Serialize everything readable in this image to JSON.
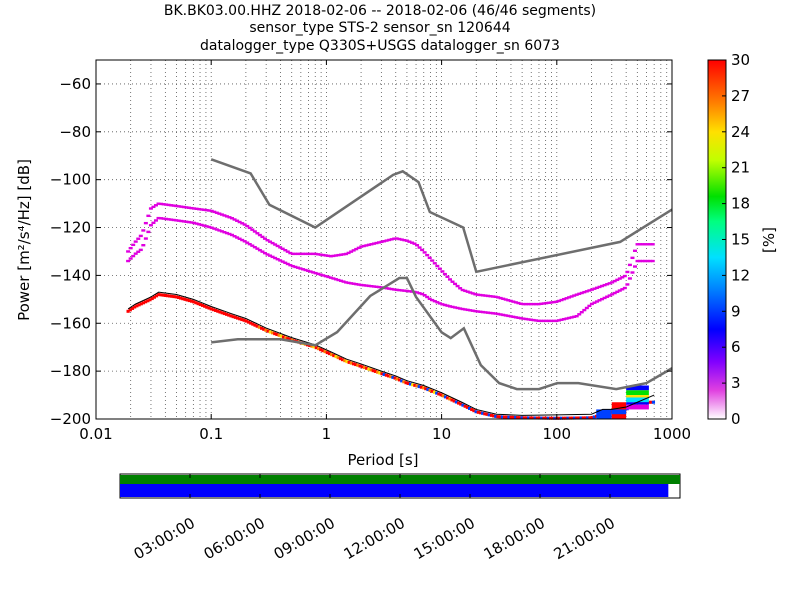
{
  "header": {
    "title_lines": [
      "BK.BK03.00.HHZ   2018-02-06 -- 2018-02-06  (46/46 segments)",
      "sensor_type STS-2 sensor_sn 120644",
      "datalogger_type Q330S+USGS datalogger_sn 6073"
    ]
  },
  "chart_data": [
    {
      "type": "heatmap",
      "xlabel": "Period [s]",
      "ylabel": "Power [m²/s⁴/Hz] [dB]",
      "xscale": "log",
      "xlim": [
        0.01,
        1000
      ],
      "ylim": [
        -200,
        -50
      ],
      "xtick_labels": [
        "0.01",
        "0.1",
        "1",
        "10",
        "100",
        "1000"
      ],
      "xtick_values": [
        0.01,
        0.1,
        1,
        10,
        100,
        1000
      ],
      "ytick_values": [
        -60,
        -80,
        -100,
        -120,
        -140,
        -160,
        -180,
        -200
      ],
      "ytick_labels": [
        "−60",
        "−80",
        "−100",
        "−120",
        "−140",
        "−160",
        "−180",
        "−200"
      ],
      "grid": true,
      "noise_model_high": {
        "x": [
          0.1,
          0.22,
          0.32,
          0.8,
          3.8,
          4.6,
          6.3,
          7.9,
          15.4,
          20,
          354.8,
          1000
        ],
        "y": [
          -91.5,
          -97.4,
          -110.5,
          -120,
          -98,
          -96.5,
          -101,
          -113.5,
          -120,
          -138.5,
          -126,
          -112.5
        ]
      },
      "noise_model_low": {
        "x": [
          0.1,
          0.17,
          0.4,
          0.8,
          1.24,
          2.4,
          4.3,
          5,
          6,
          10,
          12,
          15.6,
          21.9,
          31.6,
          45,
          70,
          101,
          154,
          328,
          600,
          1000
        ],
        "y": [
          -168,
          -166.7,
          -166.7,
          -169.2,
          -163.7,
          -148.6,
          -141.1,
          -141.1,
          -149,
          -163.8,
          -166.2,
          -162.1,
          -177.5,
          -185,
          -187.5,
          -187.5,
          -185,
          -185,
          -187.5,
          -185,
          -178.8
        ]
      },
      "psd_mode_upper": {
        "x": [
          0.019,
          0.022,
          0.025,
          0.03,
          0.035,
          0.05,
          0.07,
          0.1,
          0.15,
          0.2,
          0.3,
          0.5,
          0.8,
          1.1,
          1.5,
          2,
          3,
          4,
          5,
          6,
          7,
          8,
          10,
          12,
          15,
          20,
          30,
          50,
          70,
          100,
          150,
          200,
          300,
          400,
          500,
          700
        ],
        "y": [
          -130,
          -126,
          -123,
          -112,
          -110,
          -111,
          -112,
          -113,
          -116,
          -119,
          -125,
          -131,
          -131,
          -132,
          -131,
          -128,
          -126,
          -124.5,
          -125.5,
          -127,
          -130,
          -133,
          -138,
          -142,
          -146,
          -148,
          -149,
          -152,
          -152,
          -151,
          -148,
          -146,
          -143,
          -140,
          -127,
          -127
        ]
      },
      "psd_mode_lower": {
        "x": [
          0.019,
          0.022,
          0.025,
          0.03,
          0.035,
          0.05,
          0.07,
          0.1,
          0.15,
          0.2,
          0.3,
          0.5,
          0.8,
          1.1,
          1.5,
          2,
          3,
          4,
          5,
          6,
          7,
          8,
          10,
          12,
          15,
          20,
          30,
          50,
          70,
          100,
          150,
          200,
          300,
          400,
          500,
          700
        ],
        "y": [
          -134,
          -131,
          -129,
          -119,
          -116,
          -117,
          -118,
          -120,
          -123,
          -126,
          -131,
          -136,
          -139,
          -141,
          -143,
          -144,
          -145,
          -146,
          -146.5,
          -147,
          -148,
          -150,
          -152,
          -153,
          -154,
          -155,
          -156,
          -158,
          -159,
          -159,
          -157,
          -152,
          -148,
          -145,
          -134,
          -134
        ]
      },
      "psd_floor": {
        "x": [
          0.019,
          0.022,
          0.03,
          0.035,
          0.05,
          0.07,
          0.1,
          0.15,
          0.2,
          0.3,
          0.5,
          0.8,
          1.1,
          1.5,
          2,
          3,
          4,
          5,
          7,
          10,
          15,
          20,
          30,
          50,
          100,
          200,
          300,
          400,
          500,
          700
        ],
        "y": [
          -155,
          -153,
          -150,
          -148,
          -149,
          -151,
          -154,
          -157,
          -159,
          -163,
          -167,
          -170,
          -173,
          -176,
          -178,
          -181,
          -183,
          -185,
          -187,
          -190,
          -194,
          -197,
          -199,
          -199.5,
          -199.7,
          -199.5,
          -197,
          -196,
          -193,
          -193
        ]
      },
      "psd_floor_line": {
        "x": [
          0.019,
          0.022,
          0.03,
          0.035,
          0.05,
          0.07,
          0.1,
          0.15,
          0.2,
          0.3,
          0.5,
          0.8,
          1.1,
          1.5,
          2,
          3,
          4,
          5,
          7,
          10,
          15,
          20,
          30,
          50,
          100,
          200,
          250,
          300,
          400,
          500,
          700
        ],
        "y": [
          -154,
          -152,
          -149,
          -147,
          -148,
          -150,
          -153,
          -156,
          -158,
          -162,
          -166,
          -169,
          -172,
          -175,
          -177,
          -180,
          -182,
          -184,
          -186,
          -189,
          -193,
          -196,
          -198,
          -198.5,
          -198.3,
          -198,
          -196,
          -196,
          -195,
          -193,
          -190
        ]
      }
    },
    {
      "type": "heatmap",
      "name": "colorbar",
      "ylabel": "[%]",
      "ylim": [
        0,
        30
      ],
      "tick_values": [
        0,
        3,
        6,
        9,
        12,
        15,
        18,
        21,
        24,
        27,
        30
      ],
      "tick_labels": [
        "0",
        "3",
        "6",
        "9",
        "12",
        "15",
        "18",
        "21",
        "24",
        "27",
        "30"
      ]
    },
    {
      "type": "bar",
      "name": "coverage",
      "tick_labels": [
        "03:00:00",
        "06:00:00",
        "09:00:00",
        "12:00:00",
        "15:00:00",
        "18:00:00",
        "21:00:00"
      ],
      "tick_hours": [
        3,
        6,
        9,
        12,
        15,
        18,
        21
      ],
      "xlim_hours": [
        0,
        24
      ],
      "green_coverage": [
        0,
        24
      ],
      "blue_coverage": [
        0,
        23.5
      ]
    }
  ],
  "colors": {
    "noise_model": "#6e6e6e",
    "coverage_green": "#008000",
    "coverage_blue": "#0000ff",
    "psd_mode": "#e000e0"
  }
}
